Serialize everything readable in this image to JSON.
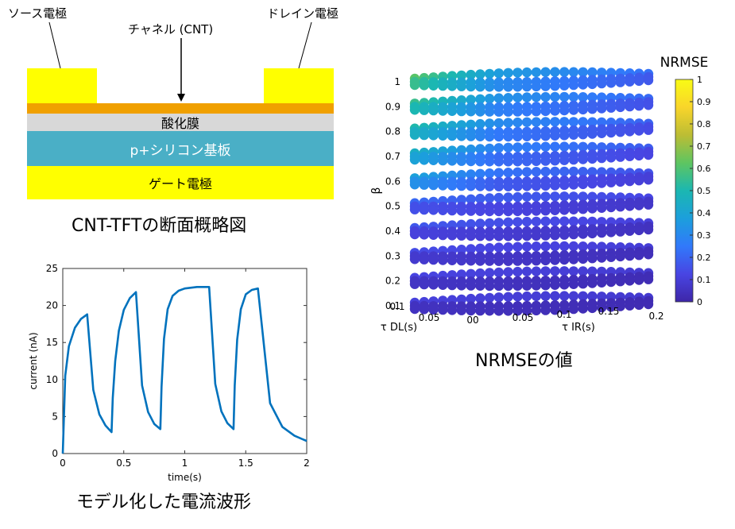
{
  "colors": {
    "electrode": "#ffff00",
    "channel": "#f0a000",
    "oxide": "#d8d8d8",
    "substrate": "#4aafc6",
    "waveform": "#0072bd",
    "nrmse_low": "#3a1fa8",
    "nrmse_high": "#f9e828"
  },
  "cross_section": {
    "source_label": "ソース電極",
    "drain_label": "ドレイン電極",
    "channel_label": "チャネル (CNT)",
    "oxide_label": "酸化膜",
    "substrate_label": "p+シリコン基板",
    "gate_label": "ゲート電極",
    "caption": "CNT-TFTの断面概略図"
  },
  "waveform_caption": "モデル化した電流波形",
  "nrmse_caption": "NRMSEの値",
  "chart_data": [
    {
      "type": "line",
      "xlabel": "time(s)",
      "ylabel": "current (nA)",
      "xlim": [
        0,
        2
      ],
      "ylim": [
        0,
        25
      ],
      "xticks": [
        0,
        0.5,
        1,
        1.5,
        2
      ],
      "yticks": [
        0,
        5,
        10,
        15,
        20,
        25
      ],
      "grid": false,
      "series": [
        {
          "x": [
            0,
            0.02,
            0.05,
            0.1,
            0.15,
            0.2,
            0.2,
            0.25,
            0.3,
            0.35,
            0.4,
            0.41,
            0.43,
            0.46,
            0.5,
            0.55,
            0.6,
            0.6,
            0.65,
            0.7,
            0.75,
            0.8,
            0.81,
            0.83,
            0.86,
            0.9,
            0.95,
            1.0,
            1.1,
            1.2,
            1.2,
            1.25,
            1.3,
            1.35,
            1.4,
            1.41,
            1.43,
            1.46,
            1.5,
            1.55,
            1.6,
            1.6,
            1.7,
            1.8,
            1.9,
            2.0
          ],
          "y": [
            0,
            10.5,
            14.5,
            17.0,
            18.2,
            18.8,
            18.8,
            8.6,
            5.3,
            3.8,
            2.9,
            7.5,
            12.5,
            16.6,
            19.4,
            21.0,
            21.8,
            21.8,
            9.2,
            5.6,
            4.0,
            3.3,
            9.0,
            15.5,
            19.5,
            21.3,
            22.0,
            22.3,
            22.5,
            22.5,
            22.5,
            9.4,
            5.7,
            4.1,
            3.3,
            9.2,
            15.4,
            19.5,
            21.5,
            22.1,
            22.3,
            22.3,
            6.8,
            3.6,
            2.4,
            1.7
          ]
        }
      ]
    },
    {
      "type": "scatter",
      "colorbar_label": "NRMSE",
      "colorbar_range": [
        0,
        1
      ],
      "colorbar_ticks": [
        0,
        0.1,
        0.2,
        0.3,
        0.4,
        0.5,
        0.6,
        0.7,
        0.8,
        0.9,
        1
      ],
      "zlabel": "β",
      "zticks": [
        0.1,
        0.2,
        0.3,
        0.4,
        0.5,
        0.6,
        0.7,
        0.8,
        0.9,
        1
      ],
      "xlabel": "τ IR(s)",
      "xticks": [
        "00",
        "0.05",
        "0.1",
        "0.15",
        "0.2"
      ],
      "ylabel": "τ DL(s)",
      "yticks": [
        "0.1",
        "0.05"
      ],
      "layers": [
        {
          "beta": 0.1,
          "nrmse": 0.05
        },
        {
          "beta": 0.2,
          "nrmse": 0.06
        },
        {
          "beta": 0.3,
          "nrmse": 0.08
        },
        {
          "beta": 0.4,
          "nrmse": 0.11
        },
        {
          "beta": 0.5,
          "nrmse": 0.15
        },
        {
          "beta": 0.6,
          "nrmse": 0.22
        },
        {
          "beta": 0.7,
          "nrmse": 0.27
        },
        {
          "beta": 0.8,
          "nrmse": 0.31
        },
        {
          "beta": 0.9,
          "nrmse": 0.34
        },
        {
          "beta": 1.0,
          "nrmse": 0.38
        }
      ]
    }
  ]
}
